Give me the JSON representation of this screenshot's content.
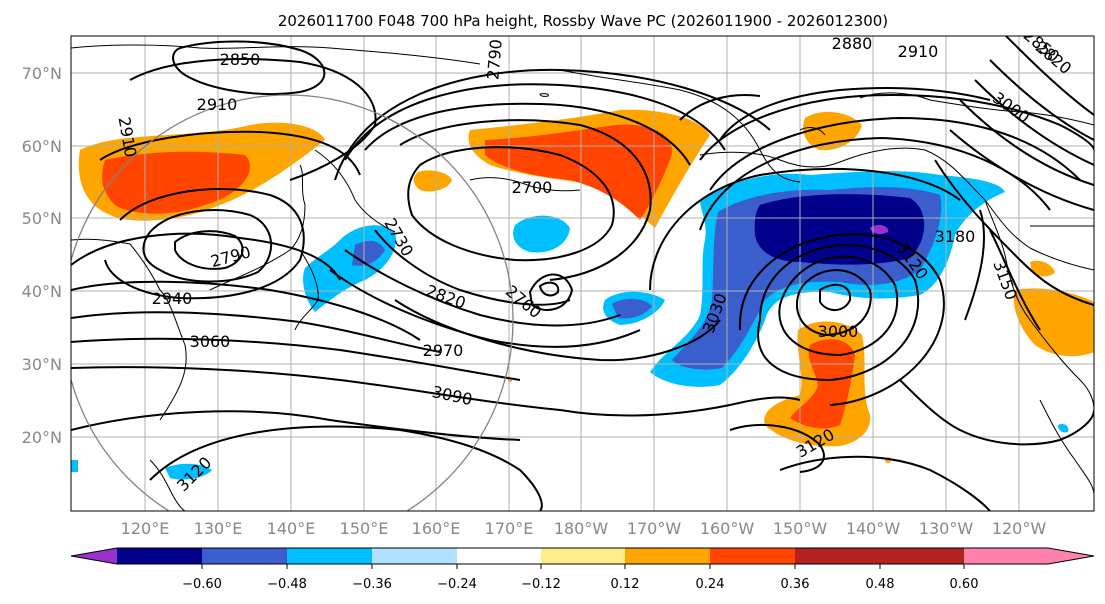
{
  "map": {
    "title": "2026011700 F048 700 hPa height, Rossby Wave PC (2026011900 - 2026012300)",
    "lat_labels": [
      "70°N",
      "60°N",
      "50°N",
      "40°N",
      "30°N",
      "20°N"
    ],
    "lon_labels": [
      "120°E",
      "130°E",
      "140°E",
      "150°E",
      "160°E",
      "170°E",
      "180°W",
      "170°W",
      "160°W",
      "150°W",
      "140°W",
      "130°W",
      "120°W"
    ],
    "contour_labels": [
      "2850",
      "2910",
      "2910",
      "2790",
      "2940",
      "3060",
      "2730",
      "2820",
      "2970",
      "3090",
      "2700",
      "2760",
      "2790",
      "2880",
      "2910",
      "2820",
      "2850",
      "3000",
      "3180",
      "3120",
      "3030",
      "3000",
      "3150",
      "3120",
      "3120"
    ]
  },
  "colorbar": {
    "ticks": [
      "−0.60",
      "−0.48",
      "−0.36",
      "−0.24",
      "−0.12",
      "0.12",
      "0.24",
      "0.36",
      "0.48",
      "0.60"
    ],
    "colors": [
      "#9932cc",
      "#00008b",
      "#3a5fcd",
      "#00bfff",
      "#b0e2ff",
      "#ffffff",
      "#ffec8b",
      "#ffa500",
      "#ff4500",
      "#b22222",
      "#ff82ab"
    ]
  }
}
